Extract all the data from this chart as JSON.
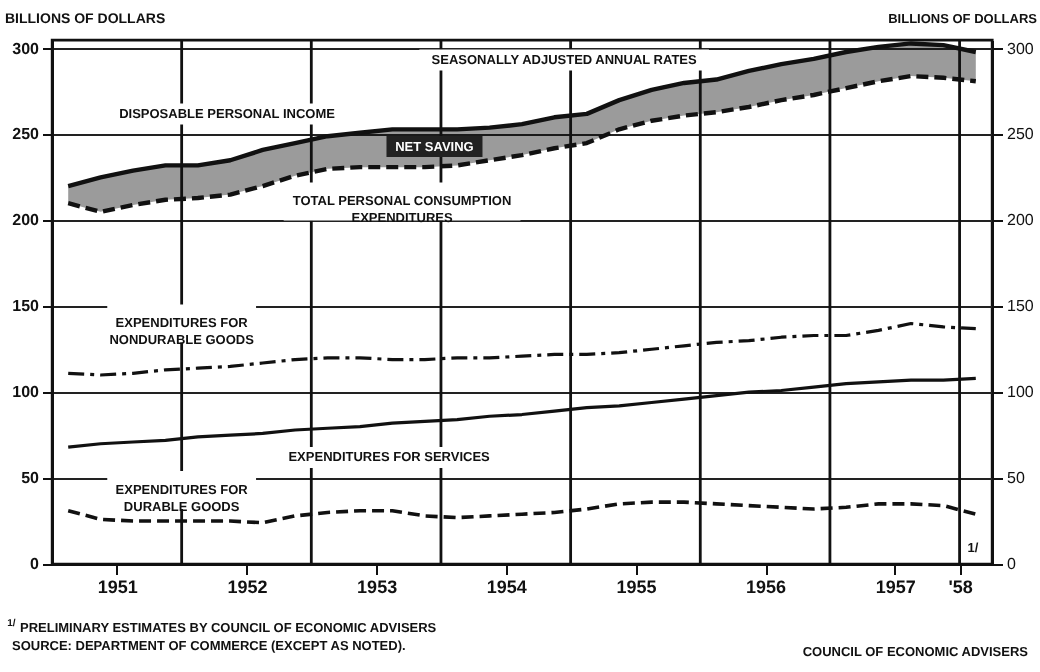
{
  "chart_data": {
    "type": "line",
    "ylabel": "BILLIONS OF DOLLARS",
    "y2label": "BILLIONS OF DOLLARS",
    "x": [
      1951.125,
      1951.375,
      1951.625,
      1951.875,
      1952.125,
      1952.375,
      1952.625,
      1952.875,
      1953.125,
      1953.375,
      1953.625,
      1953.875,
      1954.125,
      1954.375,
      1954.625,
      1954.875,
      1955.125,
      1955.375,
      1955.625,
      1955.875,
      1956.125,
      1956.375,
      1956.625,
      1956.875,
      1957.125,
      1957.375,
      1957.625,
      1957.875,
      1958.125
    ],
    "series": [
      {
        "name": "DISPOSABLE PERSONAL INCOME",
        "color": "#111111",
        "line_style": "solid",
        "values": [
          220,
          225,
          229,
          232,
          232,
          235,
          241,
          245,
          249,
          251,
          253,
          253,
          253,
          254,
          256,
          260,
          262,
          270,
          276,
          280,
          282,
          287,
          291,
          294,
          298,
          301,
          303,
          302,
          298
        ],
        "lower": [
          210,
          205,
          209,
          212,
          213,
          215,
          220,
          226,
          230,
          231,
          231,
          231,
          232,
          235,
          238,
          242,
          245,
          253,
          258,
          261,
          263,
          266,
          270,
          273,
          277,
          281,
          284,
          283,
          281
        ],
        "upper": [
          220,
          225,
          229,
          232,
          232,
          235,
          241,
          245,
          249,
          251,
          253,
          253,
          253,
          254,
          256,
          260,
          262,
          270,
          276,
          280,
          282,
          287,
          291,
          294,
          298,
          301,
          303,
          302,
          298
        ]
      },
      {
        "name": "TOTAL PERSONAL CONSUMPTION\nEXPENDITURES",
        "color": "#111111",
        "line_style": "dashed",
        "values": [
          210,
          205,
          209,
          212,
          213,
          215,
          220,
          226,
          230,
          231,
          231,
          231,
          232,
          235,
          238,
          242,
          245,
          253,
          258,
          261,
          263,
          266,
          270,
          273,
          277,
          281,
          284,
          283,
          281
        ]
      },
      {
        "name": "EXPENDITURES FOR\nNONDURABLE GOODS",
        "color": "#111111",
        "line_style": "dashdot",
        "values": [
          111,
          110,
          111,
          113,
          114,
          115,
          117,
          119,
          120,
          120,
          119,
          119,
          120,
          120,
          121,
          122,
          122,
          123,
          125,
          127,
          129,
          130,
          132,
          133,
          133,
          136,
          140,
          138,
          137
        ]
      },
      {
        "name": "EXPENDITURES FOR SERVICES",
        "color": "#111111",
        "line_style": "solid",
        "values": [
          68,
          70,
          71,
          72,
          74,
          75,
          76,
          78,
          79,
          80,
          82,
          83,
          84,
          86,
          87,
          89,
          91,
          92,
          94,
          96,
          98,
          100,
          101,
          103,
          105,
          106,
          107,
          107,
          108
        ]
      },
      {
        "name": "EXPENDITURES FOR\nDURABLE GOODS",
        "color": "#111111",
        "line_style": "dashed",
        "values": [
          31,
          26,
          25,
          25,
          25,
          25,
          24,
          28,
          30,
          31,
          31,
          28,
          27,
          28,
          29,
          30,
          32,
          35,
          36,
          36,
          35,
          34,
          33,
          32,
          33,
          35,
          35,
          34,
          29
        ]
      }
    ],
    "xlim": [
      1951.0,
      1958.25
    ],
    "xticks": [
      {
        "value": 1951.5,
        "label": "1951"
      },
      {
        "value": 1952.5,
        "label": "1952"
      },
      {
        "value": 1953.5,
        "label": "1953"
      },
      {
        "value": 1954.5,
        "label": "1954"
      },
      {
        "value": 1955.5,
        "label": "1955"
      },
      {
        "value": 1956.5,
        "label": "1956"
      },
      {
        "value": 1957.5,
        "label": "1957"
      },
      {
        "value": 1958.0,
        "label": "'58"
      }
    ],
    "ylim": [
      0,
      305
    ],
    "yticks": [
      0,
      50,
      100,
      150,
      200,
      250,
      300
    ],
    "y2lim": [
      0,
      305
    ],
    "y2ticks": [
      0,
      50,
      100,
      150,
      200,
      250,
      300
    ],
    "ref_lines": [
      {
        "axis": "x",
        "value": 1952
      },
      {
        "axis": "x",
        "value": 1953
      },
      {
        "axis": "x",
        "value": 1954
      },
      {
        "axis": "x",
        "value": 1955
      },
      {
        "axis": "x",
        "value": 1956
      },
      {
        "axis": "x",
        "value": 1957
      },
      {
        "axis": "x",
        "value": 1958
      }
    ],
    "grid": "y",
    "legend": false,
    "marker": "none",
    "annotations": [
      "SEASONALLY ADJUSTED ANNUAL RATES",
      "NET SAVING",
      "1/",
      "$^{1/}$PRELIMINARY ESTIMATES BY COUNCIL OF ECONOMIC ADVISERS",
      "SOURCE: DEPARTMENT OF COMMERCE (EXCEPT AS NOTED).",
      "COUNCIL OF ECONOMIC ADVISERS"
    ]
  }
}
